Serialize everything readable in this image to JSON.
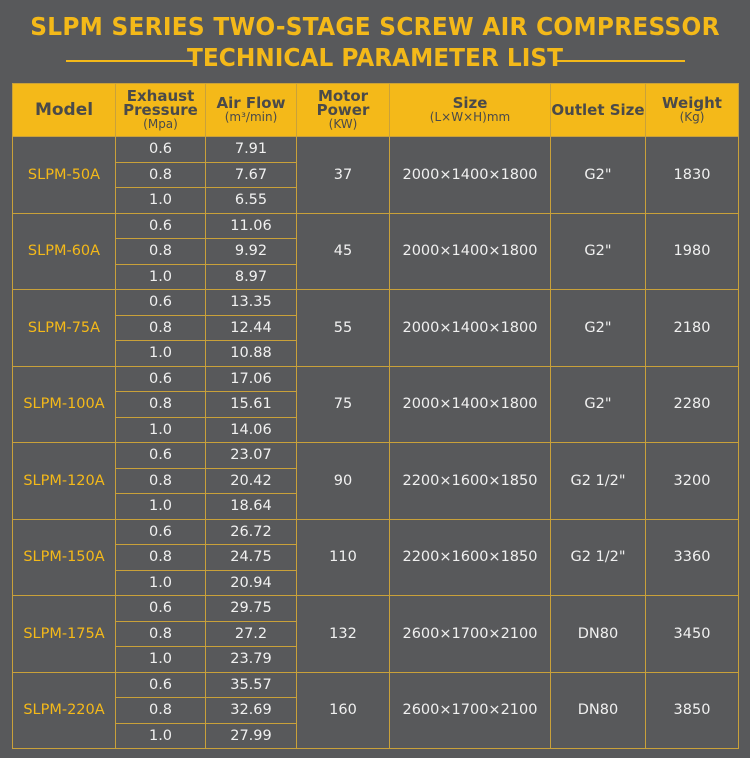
{
  "title": {
    "line1": "SLPM SERIES TWO-STAGE SCREW AIR COMPRESSOR",
    "line2": "TECHNICAL PARAMETER LIST"
  },
  "colors": {
    "accent": "#f4b919",
    "background": "#58595b",
    "border": "#c9a13a"
  },
  "headers": [
    {
      "main": "Model",
      "sub": ""
    },
    {
      "main": "Exhaust Pressure",
      "sub": "(Mpa)"
    },
    {
      "main": "Air Flow",
      "sub": "(m³/min)"
    },
    {
      "main": "Motor Power",
      "sub": "(KW)"
    },
    {
      "main": "Size",
      "sub": "(L×W×H)mm"
    },
    {
      "main": "Outlet Size",
      "sub": ""
    },
    {
      "main": "Weight",
      "sub": "(Kg)"
    }
  ],
  "rows": [
    {
      "model": "SLPM-50A",
      "pressures": [
        "0.6",
        "0.8",
        "1.0"
      ],
      "flows": [
        "7.91",
        "7.67",
        "6.55"
      ],
      "power": "37",
      "size": "2000×1400×1800",
      "outlet": "G2\"",
      "weight": "1830"
    },
    {
      "model": "SLPM-60A",
      "pressures": [
        "0.6",
        "0.8",
        "1.0"
      ],
      "flows": [
        "11.06",
        "9.92",
        "8.97"
      ],
      "power": "45",
      "size": "2000×1400×1800",
      "outlet": "G2\"",
      "weight": "1980"
    },
    {
      "model": "SLPM-75A",
      "pressures": [
        "0.6",
        "0.8",
        "1.0"
      ],
      "flows": [
        "13.35",
        "12.44",
        "10.88"
      ],
      "power": "55",
      "size": "2000×1400×1800",
      "outlet": "G2\"",
      "weight": "2180"
    },
    {
      "model": "SLPM-100A",
      "pressures": [
        "0.6",
        "0.8",
        "1.0"
      ],
      "flows": [
        "17.06",
        "15.61",
        "14.06"
      ],
      "power": "75",
      "size": "2000×1400×1800",
      "outlet": "G2\"",
      "weight": "2280"
    },
    {
      "model": "SLPM-120A",
      "pressures": [
        "0.6",
        "0.8",
        "1.0"
      ],
      "flows": [
        "23.07",
        "20.42",
        "18.64"
      ],
      "power": "90",
      "size": "2200×1600×1850",
      "outlet": "G2 1/2\"",
      "weight": "3200"
    },
    {
      "model": "SLPM-150A",
      "pressures": [
        "0.6",
        "0.8",
        "1.0"
      ],
      "flows": [
        "26.72",
        "24.75",
        "20.94"
      ],
      "power": "110",
      "size": "2200×1600×1850",
      "outlet": "G2 1/2\"",
      "weight": "3360"
    },
    {
      "model": "SLPM-175A",
      "pressures": [
        "0.6",
        "0.8",
        "1.0"
      ],
      "flows": [
        "29.75",
        "27.2",
        "23.79"
      ],
      "power": "132",
      "size": "2600×1700×2100",
      "outlet": "DN80",
      "weight": "3450"
    },
    {
      "model": "SLPM-220A",
      "pressures": [
        "0.6",
        "0.8",
        "1.0"
      ],
      "flows": [
        "35.57",
        "32.69",
        "27.99"
      ],
      "power": "160",
      "size": "2600×1700×2100",
      "outlet": "DN80",
      "weight": "3850"
    }
  ]
}
